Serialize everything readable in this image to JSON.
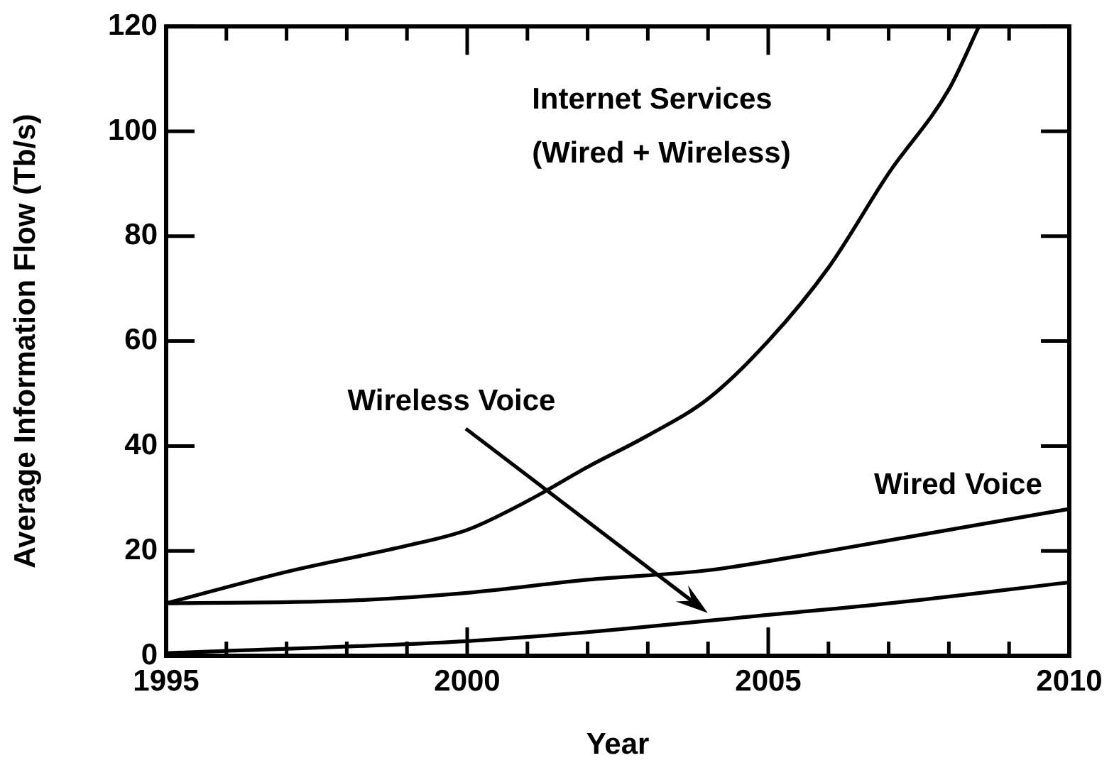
{
  "chart_data": {
    "type": "line",
    "xlabel": "Year",
    "ylabel": "Average Information Flow (Tb/s)",
    "xlim": [
      1995,
      2010
    ],
    "ylim": [
      0,
      120
    ],
    "xticks": [
      1995,
      {
        "value": 1996,
        "label": null
      },
      {
        "value": 1997,
        "label": null
      },
      {
        "value": 1998,
        "label": null
      },
      {
        "value": 1999,
        "label": null
      },
      2000,
      {
        "value": 2001,
        "label": null
      },
      {
        "value": 2002,
        "label": null
      },
      {
        "value": 2003,
        "label": null
      },
      {
        "value": 2004,
        "label": null
      },
      2005,
      {
        "value": 2006,
        "label": null
      },
      {
        "value": 2007,
        "label": null
      },
      {
        "value": 2008,
        "label": null
      },
      {
        "value": 2009,
        "label": null
      },
      2010
    ],
    "yticks": [
      0,
      20,
      40,
      60,
      80,
      100,
      120
    ],
    "series": [
      {
        "name": "Internet Services (Wired + Wireless)",
        "color": "#000000",
        "x": [
          1995,
          1997,
          1999,
          2000,
          2001,
          2002,
          2003,
          2004,
          2005,
          2006,
          2007,
          2008,
          2008.5
        ],
        "values": [
          10,
          16,
          21,
          24,
          29.5,
          36,
          42,
          49,
          60,
          74,
          92,
          108,
          120
        ]
      },
      {
        "name": "Wired Voice",
        "color": "#000000",
        "x": [
          1995,
          1998,
          2000,
          2002,
          2004,
          2006,
          2008,
          2010
        ],
        "values": [
          10,
          10.5,
          12,
          14.5,
          16.3,
          20,
          24,
          28
        ]
      },
      {
        "name": "Wireless Voice",
        "color": "#000000",
        "x": [
          1995,
          2000,
          2002,
          2005,
          2007,
          2010
        ],
        "values": [
          0.5,
          2.8,
          4.5,
          7.8,
          10,
          14
        ]
      }
    ],
    "legend": "top right",
    "grid": false,
    "marker": "none",
    "line_style": "solid"
  }
}
